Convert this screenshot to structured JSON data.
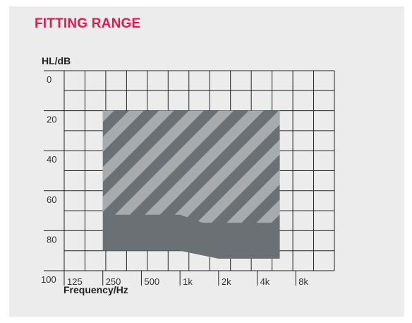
{
  "title": "FITTING RANGE",
  "colors": {
    "panel_bg": "#ececec",
    "title": "#e8174f",
    "grid": "#222222",
    "range_dark": "#6b7074",
    "range_light": "#a8abae"
  },
  "chart_data": {
    "type": "area",
    "title": "FITTING RANGE",
    "ylabel": "HL/dB",
    "xlabel": "Frequency/Hz",
    "y_ticks": [
      "0",
      "20",
      "40",
      "60",
      "80",
      "100"
    ],
    "y_tick_values": [
      0,
      20,
      40,
      60,
      80,
      100
    ],
    "x_ticks": [
      "125",
      "250",
      "500",
      "1k",
      "2k",
      "4k",
      "8k"
    ],
    "x_tick_values": [
      125,
      250,
      500,
      1000,
      2000,
      4000,
      8000
    ],
    "ylim": [
      100,
      0
    ],
    "xlim_octaves": [
      125,
      16000
    ],
    "grid": true,
    "y_reversed": true,
    "series": [
      {
        "values_x": [
          250,
          6000
        ],
        "upper_hl": 20,
        "lower_boundary": [
          [
            250,
            90
          ],
          [
            1000,
            90
          ],
          [
            2000,
            94
          ],
          [
            6000,
            94
          ]
        ]
      },
      {
        "pattern": "diagonal-stripes",
        "values_x": [
          250,
          6000
        ],
        "upper_hl": 20,
        "lower_boundary": [
          [
            250,
            72
          ],
          [
            1000,
            72
          ],
          [
            1500,
            76
          ],
          [
            4000,
            76
          ],
          [
            6000,
            76
          ]
        ]
      }
    ]
  }
}
